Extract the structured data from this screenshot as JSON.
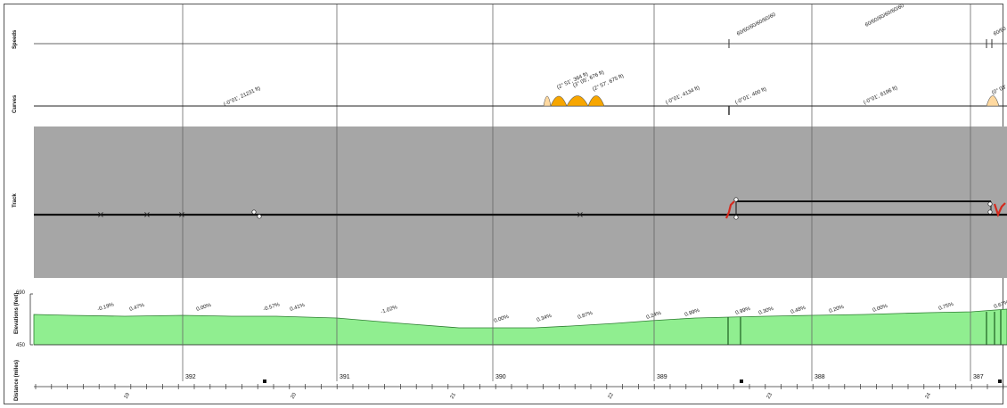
{
  "rows": {
    "speeds": "Speeds",
    "curves": "Curves",
    "track": "Track",
    "elevations": "Elevations (feet)",
    "distance": "Distance (miles)"
  },
  "elevation_axis": {
    "max": "690",
    "min": "450"
  },
  "colors": {
    "track_bg": "#a6a6a6",
    "elevation_fill": "#90ee90",
    "curve_fill": "#f7a600",
    "curve_fill_light": "#ffd9a0",
    "turnout": "#d42a1e"
  },
  "speed_labels": [
    {
      "id": "speed-1",
      "text": "60/60/60/60/60/60"
    },
    {
      "id": "speed-2",
      "text": "60/60/60/60/60/60"
    },
    {
      "id": "speed-3",
      "text": "60/60"
    }
  ],
  "curve_labels": [
    {
      "id": "curve-1",
      "text": "(-0°01', 21231 ft)"
    },
    {
      "id": "curve-2",
      "text": "(2° 51', 364 ft)"
    },
    {
      "id": "curve-3",
      "text": "(3° 05', 676 ft)"
    },
    {
      "id": "curve-4",
      "text": "(2° 57', 675 ft)"
    },
    {
      "id": "curve-5",
      "text": "(-0°01', 4134 ft)"
    },
    {
      "id": "curve-6",
      "text": "(-0°01', 400 ft)"
    },
    {
      "id": "curve-7",
      "text": "(-0°01', 8196 ft)"
    },
    {
      "id": "curve-8",
      "text": "(0° 03'"
    }
  ],
  "grade_labels": [
    {
      "id": "g1",
      "text": "-0.19%"
    },
    {
      "id": "g2",
      "text": "0.47%"
    },
    {
      "id": "g3",
      "text": "0.00%"
    },
    {
      "id": "g4",
      "text": "-0.57%"
    },
    {
      "id": "g5",
      "text": "0.41%"
    },
    {
      "id": "g6",
      "text": "-1.02%"
    },
    {
      "id": "g7",
      "text": "0.00%"
    },
    {
      "id": "g8",
      "text": "0.34%"
    },
    {
      "id": "g9",
      "text": "0.87%"
    },
    {
      "id": "g10",
      "text": "0.24%"
    },
    {
      "id": "g11",
      "text": "0.99%"
    },
    {
      "id": "g12",
      "text": "0.99%"
    },
    {
      "id": "g13",
      "text": "0.30%"
    },
    {
      "id": "g14",
      "text": "0.48%"
    },
    {
      "id": "g15",
      "text": "0.20%"
    },
    {
      "id": "g16",
      "text": "0.00%"
    },
    {
      "id": "g17",
      "text": "0.75%"
    },
    {
      "id": "g18",
      "text": "0.67%"
    }
  ],
  "mileposts": [
    {
      "id": "mp-392",
      "text": "392"
    },
    {
      "id": "mp-391",
      "text": "391"
    },
    {
      "id": "mp-390",
      "text": "390"
    },
    {
      "id": "mp-389",
      "text": "389"
    },
    {
      "id": "mp-388",
      "text": "388"
    },
    {
      "id": "mp-387",
      "text": "387"
    }
  ],
  "station_labels": [
    {
      "id": "st-1",
      "text": "19"
    },
    {
      "id": "st-2",
      "text": "20"
    },
    {
      "id": "st-3",
      "text": "21"
    },
    {
      "id": "st-4",
      "text": "22"
    },
    {
      "id": "st-5",
      "text": "23"
    },
    {
      "id": "st-6",
      "text": "24"
    }
  ]
}
